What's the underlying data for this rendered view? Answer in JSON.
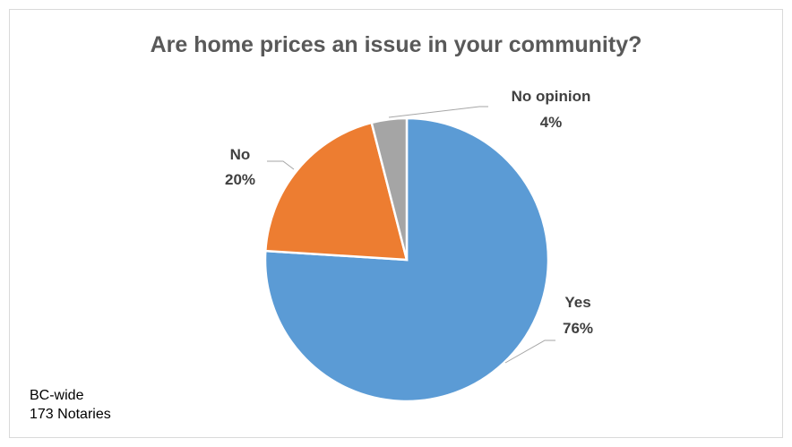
{
  "chart_data": {
    "type": "pie",
    "title": "Are home prices an issue in your community?",
    "slices": [
      {
        "name": "Yes",
        "value": 76,
        "label": "76%",
        "color": "#5b9bd5"
      },
      {
        "name": "No",
        "value": 20,
        "label": "20%",
        "color": "#ed7d31"
      },
      {
        "name": "No opinion",
        "value": 4,
        "label": "4%",
        "color": "#a5a5a5"
      }
    ],
    "legend": "none"
  },
  "footnote": {
    "line1": "BC-wide",
    "line2": "173 Notaries"
  }
}
